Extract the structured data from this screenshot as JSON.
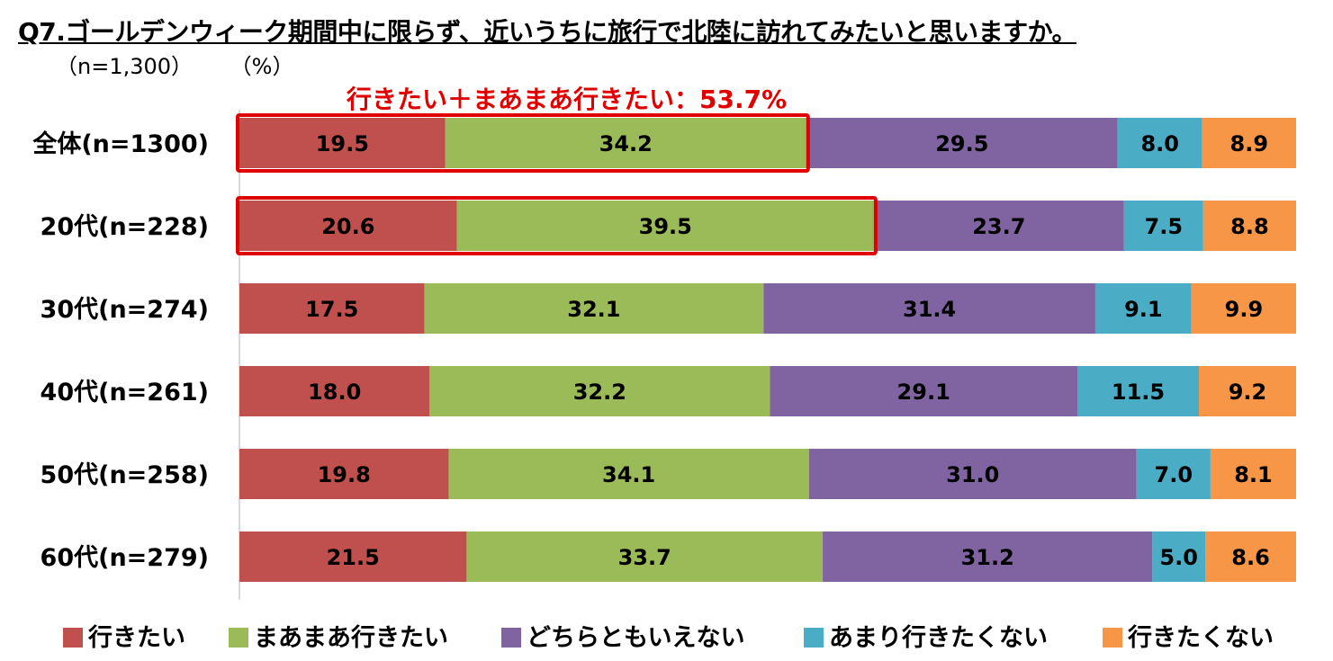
{
  "page": {
    "title": "Q7.ゴールデンウィーク期間中に限らず、近いうちに旅行で北陸に訪れてみたいと思いますか。",
    "sample_note": "（n=1,300）",
    "unit_note": "（%）"
  },
  "chart_data": {
    "type": "bar",
    "orientation": "horizontal",
    "stacked": "percent",
    "categories": [
      "全体(n=1300)",
      "20代(n=228)",
      "30代(n=274)",
      "40代(n=261)",
      "50代(n=258)",
      "60代(n=279)"
    ],
    "series": [
      {
        "name": "行きたい",
        "color": "#c0504d",
        "values": [
          19.5,
          20.6,
          17.5,
          18.0,
          19.8,
          21.5
        ]
      },
      {
        "name": "まあまあ行きたい",
        "color": "#9bbb59",
        "values": [
          34.2,
          39.5,
          32.1,
          32.2,
          34.1,
          33.7
        ]
      },
      {
        "name": "どちらともいえない",
        "color": "#8064a2",
        "values": [
          29.5,
          23.7,
          31.4,
          29.1,
          31.0,
          31.2
        ]
      },
      {
        "name": "あまり行きたくない",
        "color": "#4bacc6",
        "values": [
          8.0,
          7.5,
          9.1,
          11.5,
          7.0,
          5.0
        ]
      },
      {
        "name": "行きたくない",
        "color": "#f79646",
        "values": [
          8.9,
          8.8,
          9.9,
          9.2,
          8.1,
          8.6
        ]
      }
    ],
    "annotation": {
      "text": "行きたい＋まあまあ行きたい：53.7%",
      "highlight_categories": [
        0,
        1
      ],
      "highlight_series": [
        0,
        1
      ],
      "color": "#e00000"
    },
    "legend_position": "bottom"
  }
}
